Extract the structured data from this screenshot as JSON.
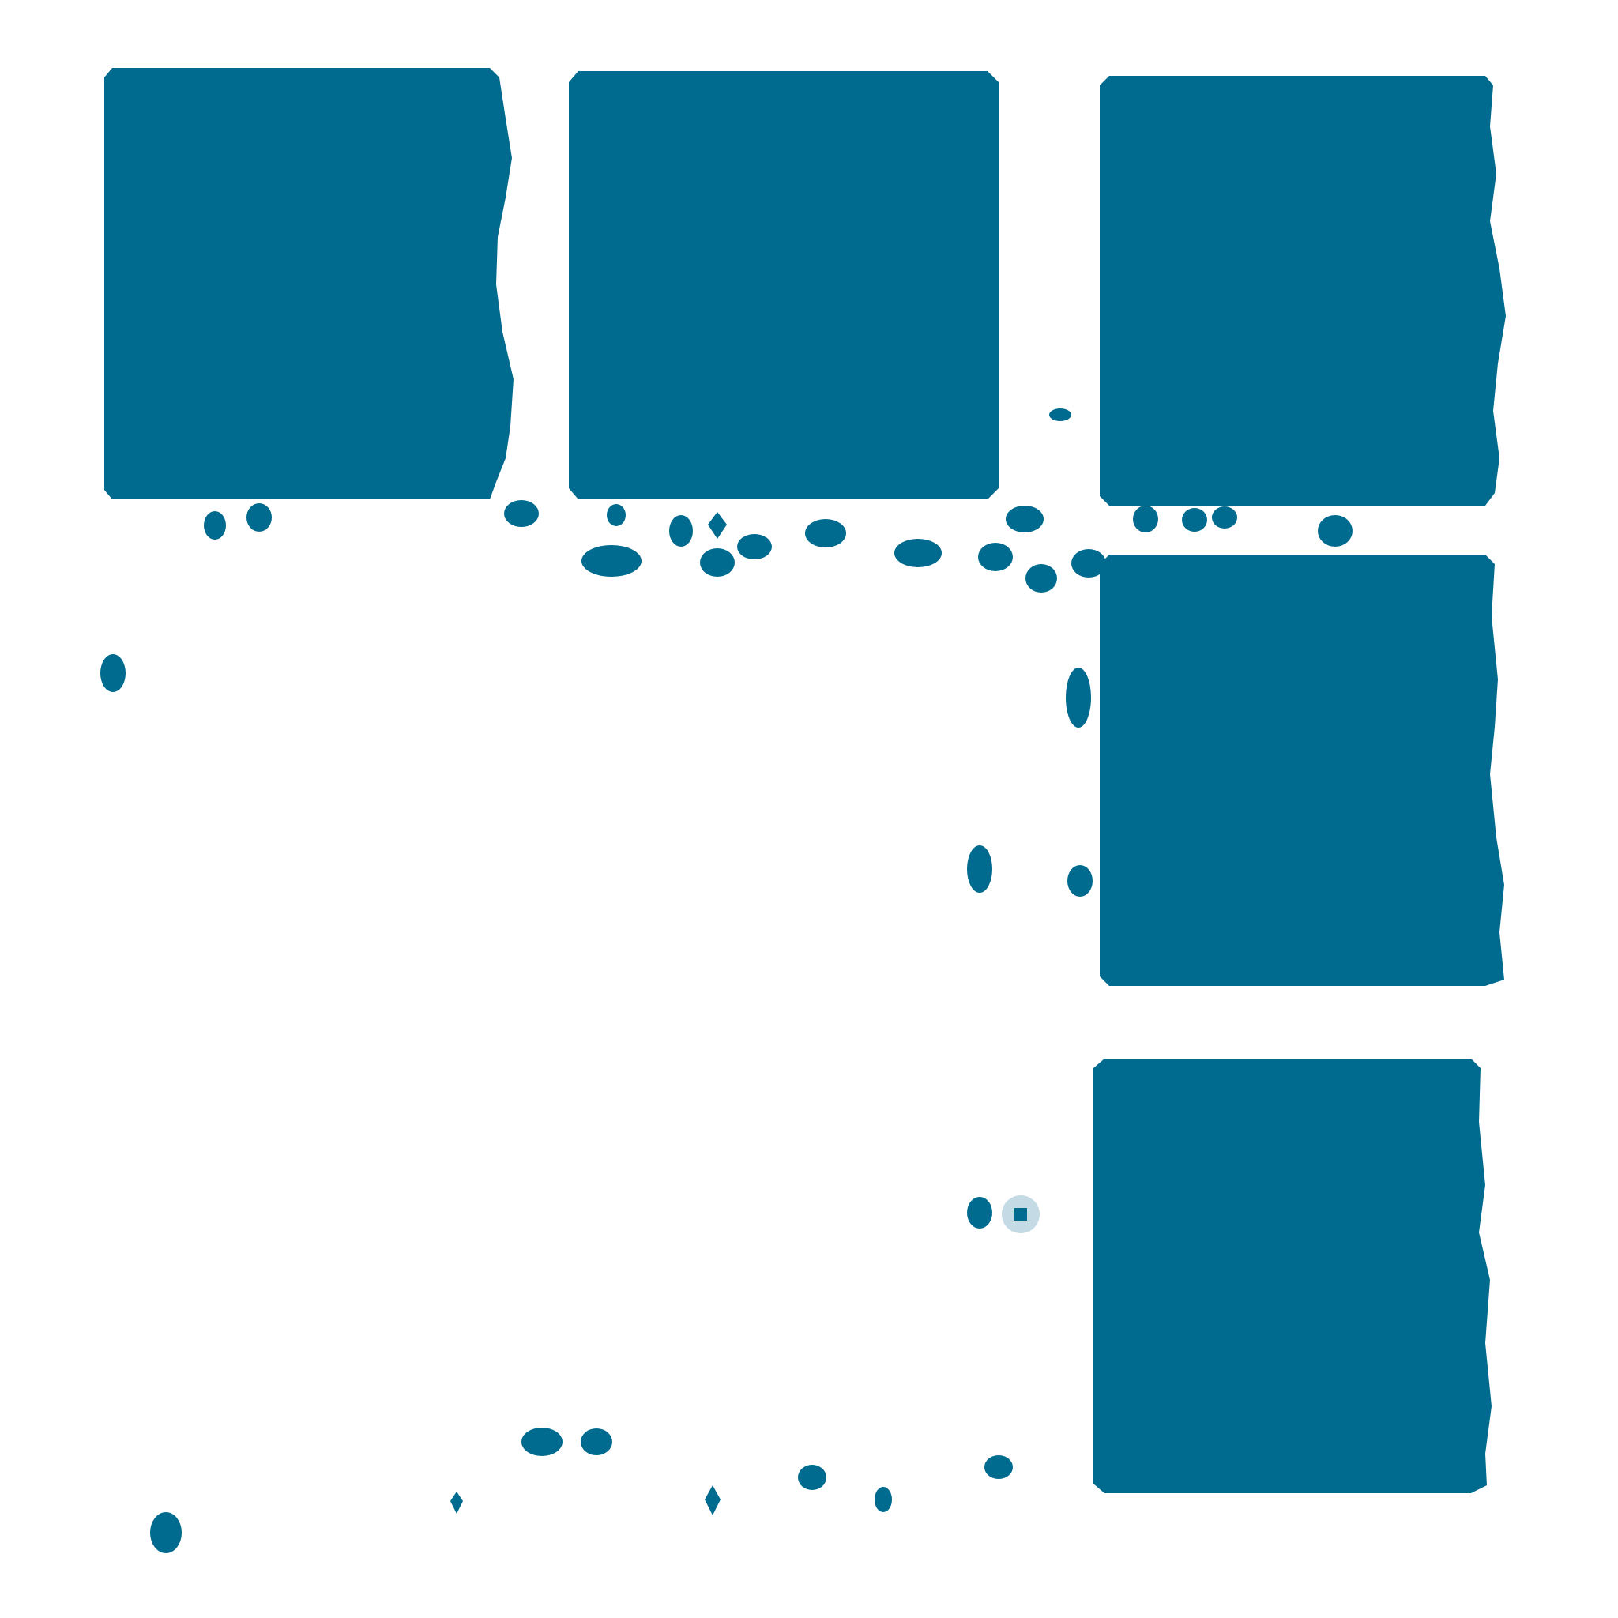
{
  "colors": {
    "background": "#ffffff",
    "primary": "#006b8e",
    "light": "#7aa8be",
    "pale": "#c4dae5"
  },
  "tiles": [
    {
      "name": "tile-top-left",
      "style": "solid"
    },
    {
      "name": "tile-top-middle",
      "style": "solid"
    },
    {
      "name": "tile-top-right",
      "style": "solid"
    },
    {
      "name": "tile-middle-right",
      "style": "solid"
    },
    {
      "name": "tile-bottom-right",
      "style": "solid"
    },
    {
      "name": "tile-large-speckled",
      "style": "speckled"
    }
  ]
}
